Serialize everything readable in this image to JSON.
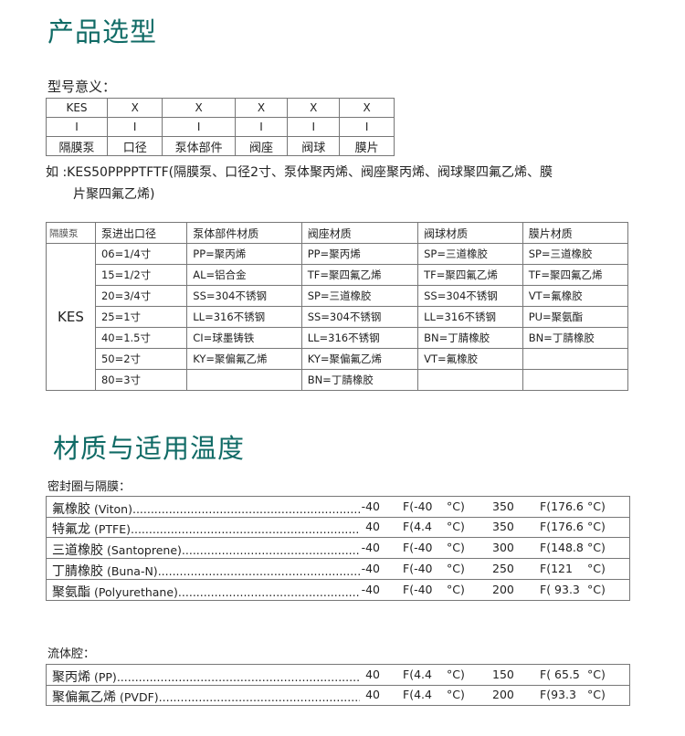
{
  "section1": {
    "title": "产品选型",
    "model_label": "型号意义：",
    "model_table": {
      "row1": [
        "KES",
        "X",
        "X",
        "X",
        "X",
        "X"
      ],
      "row2": [
        "I",
        "I",
        "I",
        "I",
        "I",
        "I"
      ],
      "row3": [
        "隔膜泵",
        "口径",
        "泵体部件",
        "阀座",
        "阀球",
        "膜片"
      ]
    },
    "example_line1": "如 :KES50PPPPTFTF(隔膜泵、口径2寸、泵体聚丙烯、阀座聚丙烯、阀球聚四氟乙烯、膜",
    "example_line2": "片聚四氟乙烯)",
    "spec_table": {
      "headers": [
        "隔膜泵",
        "泵进出口径",
        "泵体部件材质",
        "阀座材质",
        "阀球材质",
        "膜片材质"
      ],
      "model": "KES",
      "rows": [
        [
          "06=1/4寸",
          "PP=聚丙烯",
          "PP=聚丙烯",
          "SP=三道橡胶",
          "SP=三道橡胶"
        ],
        [
          "15=1/2寸",
          "AL=铝合金",
          "TF=聚四氟乙烯",
          "TF=聚四氟乙烯",
          "TF=聚四氟乙烯"
        ],
        [
          "20=3/4寸",
          "SS=304不锈钢",
          "SP=三道橡胶",
          "SS=304不锈钢",
          "VT=氟橡胶"
        ],
        [
          "25=1寸",
          "LL=316不锈钢",
          "SS=304不锈钢",
          "LL=316不锈钢",
          "PU=聚氨酯"
        ],
        [
          "40=1.5寸",
          "CI=球墨铸铁",
          "LL=316不锈钢",
          "BN=丁腈橡胶",
          "BN=丁腈橡胶"
        ],
        [
          "50=2寸",
          "KY=聚偏氟乙烯",
          "KY=聚偏氟乙烯",
          "VT=氟橡胶",
          ""
        ],
        [
          "80=3寸",
          "",
          "BN=丁腈橡胶",
          "",
          ""
        ]
      ]
    }
  },
  "section2": {
    "title": "材质与适用温度",
    "seal_label": "密封圈与隔膜：",
    "seals": [
      {
        "cn": "氟橡胶",
        "en": "(Viton)",
        "min": "-40",
        "minc": "F(-40",
        "unit1": "°C)",
        "max": "350",
        "maxc": "F(176.6",
        "unit2": "°C)"
      },
      {
        "cn": "特氟龙",
        "en": "(PTFE)",
        "min": "40",
        "minc": "F(4.4",
        "unit1": "°C)",
        "max": "350",
        "maxc": "F(176.6",
        "unit2": "°C)"
      },
      {
        "cn": "三道橡胶",
        "en": "(Santoprene)",
        "min": "-40",
        "minc": "F(-40",
        "unit1": "°C)",
        "max": "300",
        "maxc": "F(148.8",
        "unit2": "°C)"
      },
      {
        "cn": "丁腈橡胶",
        "en": "(Buna-N)",
        "min": "-40",
        "minc": "F(-40",
        "unit1": "°C)",
        "max": "250",
        "maxc": "F(121",
        "unit2": "°C)"
      },
      {
        "cn": "聚氨酯",
        "en": "(Polyurethane)",
        "min": "-40",
        "minc": "F(-40",
        "unit1": "°C)",
        "max": "200",
        "maxc": "F( 93.3",
        "unit2": "°C)"
      }
    ],
    "fluid_label": "流体腔：",
    "fluid": [
      {
        "cn": "聚丙烯",
        "en": "(PP)",
        "min": "40",
        "minc": "F(4.4",
        "unit1": "°C)",
        "max": "150",
        "maxc": "F( 65.5",
        "unit2": "°C)"
      },
      {
        "cn": "聚偏氟乙烯",
        "en": "(PVDF)",
        "min": "40",
        "minc": "F(4.4",
        "unit1": "°C)",
        "max": "200",
        "maxc": "F(93.3",
        "unit2": "°C)"
      }
    ]
  }
}
